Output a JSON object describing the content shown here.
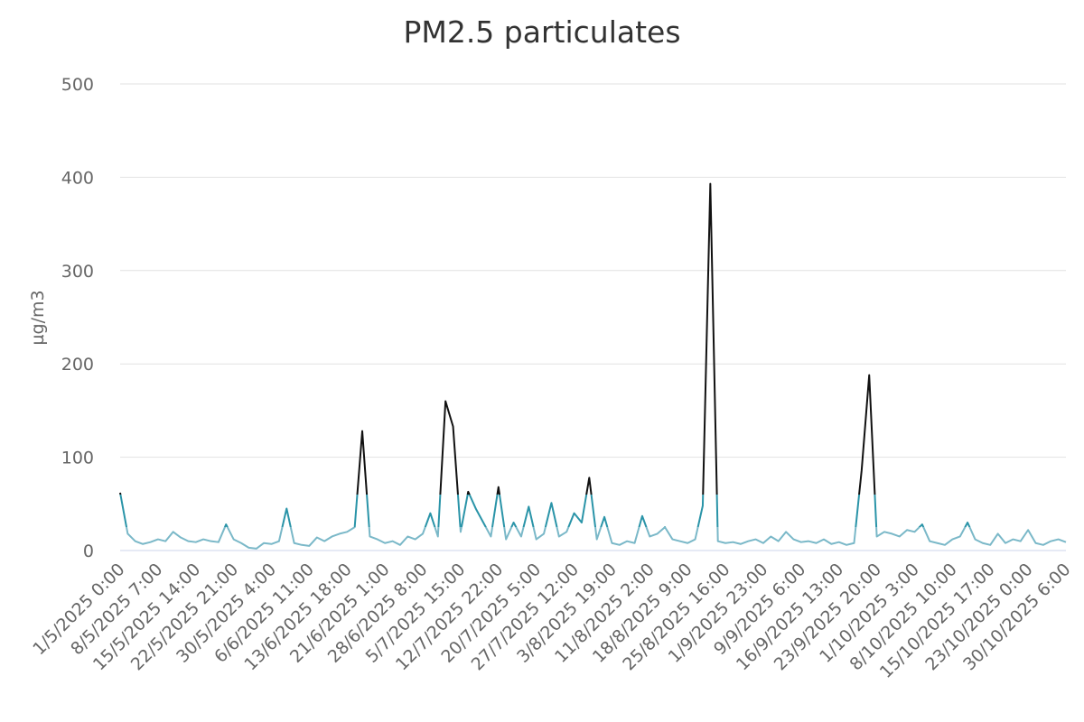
{
  "chart_data": {
    "type": "line",
    "title": "PM2.5 particulates",
    "y_label": "µg/m3",
    "categories": [
      "1/5/2025 0:00",
      null,
      null,
      null,
      null,
      "8/5/2025 7:00",
      null,
      null,
      null,
      null,
      "15/5/2025 14:00",
      null,
      null,
      null,
      null,
      "22/5/2025 21:00",
      null,
      null,
      null,
      null,
      "30/5/2025 4:00",
      null,
      null,
      null,
      null,
      "6/6/2025 11:00",
      null,
      null,
      null,
      null,
      "13/6/2025 18:00",
      null,
      null,
      null,
      null,
      "21/6/2025 1:00",
      null,
      null,
      null,
      null,
      "28/6/2025 8:00",
      null,
      null,
      null,
      null,
      "5/7/2025 15:00",
      null,
      null,
      null,
      null,
      "12/7/2025 22:00",
      null,
      null,
      null,
      null,
      "20/7/2025 5:00",
      null,
      null,
      null,
      null,
      "27/7/2025 12:00",
      null,
      null,
      null,
      null,
      "3/8/2025 19:00",
      null,
      null,
      null,
      null,
      "11/8/2025 2:00",
      null,
      null,
      null,
      null,
      "18/8/2025 9:00",
      null,
      null,
      null,
      null,
      "25/8/2025 16:00",
      null,
      null,
      null,
      null,
      "1/9/2025 23:00",
      null,
      null,
      null,
      null,
      "9/9/2025 6:00",
      null,
      null,
      null,
      null,
      "16/9/2025 13:00",
      null,
      null,
      null,
      null,
      "23/9/2025 20:00",
      null,
      null,
      null,
      null,
      "1/10/2025 3:00",
      null,
      null,
      null,
      null,
      "8/10/2025 10:00",
      null,
      null,
      null,
      null,
      "15/10/2025 17:00",
      null,
      null,
      null,
      null,
      "23/10/2025 0:00",
      null,
      null,
      null,
      null,
      "30/10/2025 6:00"
    ],
    "series": [
      {
        "values": [
          62,
          18,
          10,
          7,
          9,
          12,
          10,
          20,
          14,
          10,
          9,
          12,
          10,
          9,
          28,
          12,
          8,
          3,
          2,
          8,
          7,
          10,
          45,
          8,
          6,
          5,
          14,
          10,
          15,
          18,
          20,
          25,
          128,
          15,
          12,
          8,
          10,
          6,
          15,
          12,
          18,
          40,
          15,
          160,
          133,
          20,
          63,
          45,
          30,
          15,
          68,
          12,
          30,
          15,
          47,
          12,
          18,
          51,
          15,
          20,
          40,
          30,
          78,
          12,
          36,
          8,
          6,
          10,
          8,
          37,
          15,
          18,
          25,
          12,
          10,
          8,
          12,
          48,
          393,
          10,
          8,
          9,
          7,
          10,
          12,
          8,
          15,
          10,
          20,
          12,
          9,
          10,
          8,
          12,
          7,
          9,
          6,
          8,
          86,
          188,
          15,
          20,
          18,
          15,
          22,
          20,
          28,
          10,
          8,
          6,
          12,
          15,
          30,
          12,
          8,
          6,
          18,
          8,
          12,
          10,
          22,
          8,
          6,
          10,
          12,
          9
        ],
        "zones": [
          {
            "value": 25,
            "color": "#7ab8c8"
          },
          {
            "value": 60,
            "color": "#2a94a8"
          },
          {
            "color": "#111111"
          }
        ]
      }
    ],
    "ylim": [
      0,
      500
    ],
    "yticks": [
      0,
      100,
      200,
      300,
      400,
      500
    ],
    "grid": true
  }
}
